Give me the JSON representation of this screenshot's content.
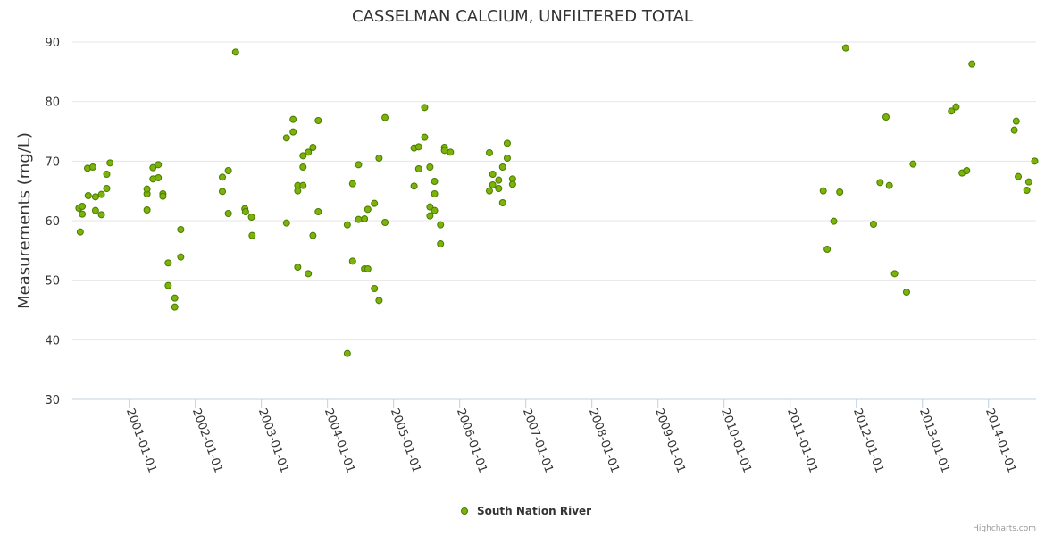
{
  "chart_data": {
    "type": "scatter",
    "title": "CASSELMAN CALCIUM, UNFILTERED TOTAL",
    "xlabel": "",
    "ylabel": "Measurements (mg/L)",
    "ylim": [
      30,
      90
    ],
    "xlim": [
      2000.14,
      2014.72
    ],
    "yticks": [
      30,
      40,
      50,
      60,
      70,
      80,
      90
    ],
    "xticks": [
      {
        "value": 2001,
        "label": "2001-01-01"
      },
      {
        "value": 2002,
        "label": "2002-01-01"
      },
      {
        "value": 2003,
        "label": "2003-01-01"
      },
      {
        "value": 2004,
        "label": "2004-01-01"
      },
      {
        "value": 2005,
        "label": "2005-01-01"
      },
      {
        "value": 2006,
        "label": "2006-01-01"
      },
      {
        "value": 2007,
        "label": "2007-01-01"
      },
      {
        "value": 2008,
        "label": "2008-01-01"
      },
      {
        "value": 2009,
        "label": "2009-01-01"
      },
      {
        "value": 2010,
        "label": "2010-01-01"
      },
      {
        "value": 2011,
        "label": "2011-01-01"
      },
      {
        "value": 2012,
        "label": "2012-01-01"
      },
      {
        "value": 2013,
        "label": "2013-01-01"
      },
      {
        "value": 2014,
        "label": "2014-01-01"
      }
    ],
    "grid": true,
    "legend_position": "bottom-center",
    "series": [
      {
        "name": "South Nation River",
        "color": "#7cb30a",
        "stroke": "#4a7a00",
        "points": [
          [
            2000.24,
            62.1
          ],
          [
            2000.26,
            58.1
          ],
          [
            2000.29,
            62.4
          ],
          [
            2000.29,
            61.1
          ],
          [
            2000.37,
            68.8
          ],
          [
            2000.38,
            64.2
          ],
          [
            2000.45,
            69.0
          ],
          [
            2000.49,
            61.7
          ],
          [
            2000.49,
            64.0
          ],
          [
            2000.58,
            64.4
          ],
          [
            2000.58,
            61.0
          ],
          [
            2000.66,
            65.4
          ],
          [
            2000.66,
            67.8
          ],
          [
            2000.71,
            69.7
          ],
          [
            2001.27,
            64.5
          ],
          [
            2001.27,
            61.8
          ],
          [
            2001.27,
            65.3
          ],
          [
            2001.36,
            67.0
          ],
          [
            2001.36,
            68.9
          ],
          [
            2001.44,
            69.4
          ],
          [
            2001.44,
            67.2
          ],
          [
            2001.51,
            64.5
          ],
          [
            2001.51,
            64.1
          ],
          [
            2001.59,
            52.9
          ],
          [
            2001.59,
            49.1
          ],
          [
            2001.69,
            47.0
          ],
          [
            2001.69,
            45.5
          ],
          [
            2001.78,
            58.5
          ],
          [
            2001.78,
            53.9
          ],
          [
            2002.41,
            67.3
          ],
          [
            2002.41,
            64.9
          ],
          [
            2002.5,
            68.4
          ],
          [
            2002.5,
            61.2
          ],
          [
            2002.61,
            88.3
          ],
          [
            2002.75,
            62.0
          ],
          [
            2002.76,
            61.5
          ],
          [
            2002.85,
            60.6
          ],
          [
            2002.86,
            57.5
          ],
          [
            2003.38,
            59.6
          ],
          [
            2003.38,
            73.9
          ],
          [
            2003.48,
            77.0
          ],
          [
            2003.48,
            74.9
          ],
          [
            2003.55,
            65.9
          ],
          [
            2003.55,
            65.0
          ],
          [
            2003.55,
            52.2
          ],
          [
            2003.63,
            65.9
          ],
          [
            2003.63,
            69.0
          ],
          [
            2003.63,
            70.9
          ],
          [
            2003.71,
            71.5
          ],
          [
            2003.71,
            51.1
          ],
          [
            2003.78,
            72.3
          ],
          [
            2003.78,
            57.5
          ],
          [
            2003.86,
            61.5
          ],
          [
            2003.86,
            76.8
          ],
          [
            2004.3,
            59.3
          ],
          [
            2004.3,
            37.7
          ],
          [
            2004.38,
            66.2
          ],
          [
            2004.38,
            53.2
          ],
          [
            2004.47,
            69.4
          ],
          [
            2004.47,
            60.2
          ],
          [
            2004.56,
            60.3
          ],
          [
            2004.56,
            51.9
          ],
          [
            2004.61,
            61.9
          ],
          [
            2004.61,
            51.9
          ],
          [
            2004.71,
            62.9
          ],
          [
            2004.71,
            48.6
          ],
          [
            2004.78,
            70.5
          ],
          [
            2004.78,
            46.6
          ],
          [
            2004.87,
            77.3
          ],
          [
            2004.87,
            59.7
          ],
          [
            2005.31,
            72.2
          ],
          [
            2005.31,
            65.8
          ],
          [
            2005.38,
            72.4
          ],
          [
            2005.38,
            68.7
          ],
          [
            2005.47,
            79.0
          ],
          [
            2005.47,
            74.0
          ],
          [
            2005.55,
            69.0
          ],
          [
            2005.55,
            62.3
          ],
          [
            2005.55,
            60.8
          ],
          [
            2005.62,
            66.6
          ],
          [
            2005.62,
            64.5
          ],
          [
            2005.62,
            61.7
          ],
          [
            2005.71,
            59.3
          ],
          [
            2005.71,
            56.1
          ],
          [
            2005.77,
            72.3
          ],
          [
            2005.77,
            71.8
          ],
          [
            2005.86,
            71.5
          ],
          [
            2006.45,
            71.4
          ],
          [
            2006.45,
            65.0
          ],
          [
            2006.5,
            67.8
          ],
          [
            2006.5,
            66.0
          ],
          [
            2006.59,
            66.8
          ],
          [
            2006.59,
            65.4
          ],
          [
            2006.65,
            69.0
          ],
          [
            2006.65,
            63.0
          ],
          [
            2006.72,
            73.0
          ],
          [
            2006.72,
            70.5
          ],
          [
            2006.8,
            67.0
          ],
          [
            2006.8,
            66.1
          ],
          [
            2011.5,
            65.0
          ],
          [
            2011.56,
            55.2
          ],
          [
            2011.66,
            59.9
          ],
          [
            2011.75,
            64.8
          ],
          [
            2011.84,
            89.0
          ],
          [
            2012.26,
            59.4
          ],
          [
            2012.36,
            66.4
          ],
          [
            2012.45,
            77.4
          ],
          [
            2012.5,
            65.9
          ],
          [
            2012.58,
            51.1
          ],
          [
            2012.76,
            48.0
          ],
          [
            2012.86,
            69.5
          ],
          [
            2013.44,
            78.4
          ],
          [
            2013.51,
            79.1
          ],
          [
            2013.6,
            68.0
          ],
          [
            2013.67,
            68.4
          ],
          [
            2013.75,
            86.3
          ],
          [
            2014.39,
            75.2
          ],
          [
            2014.42,
            76.7
          ],
          [
            2014.45,
            67.4
          ],
          [
            2014.58,
            65.1
          ],
          [
            2014.61,
            66.5
          ],
          [
            2014.7,
            70.0
          ]
        ]
      }
    ],
    "credits": "Highcharts.com"
  }
}
